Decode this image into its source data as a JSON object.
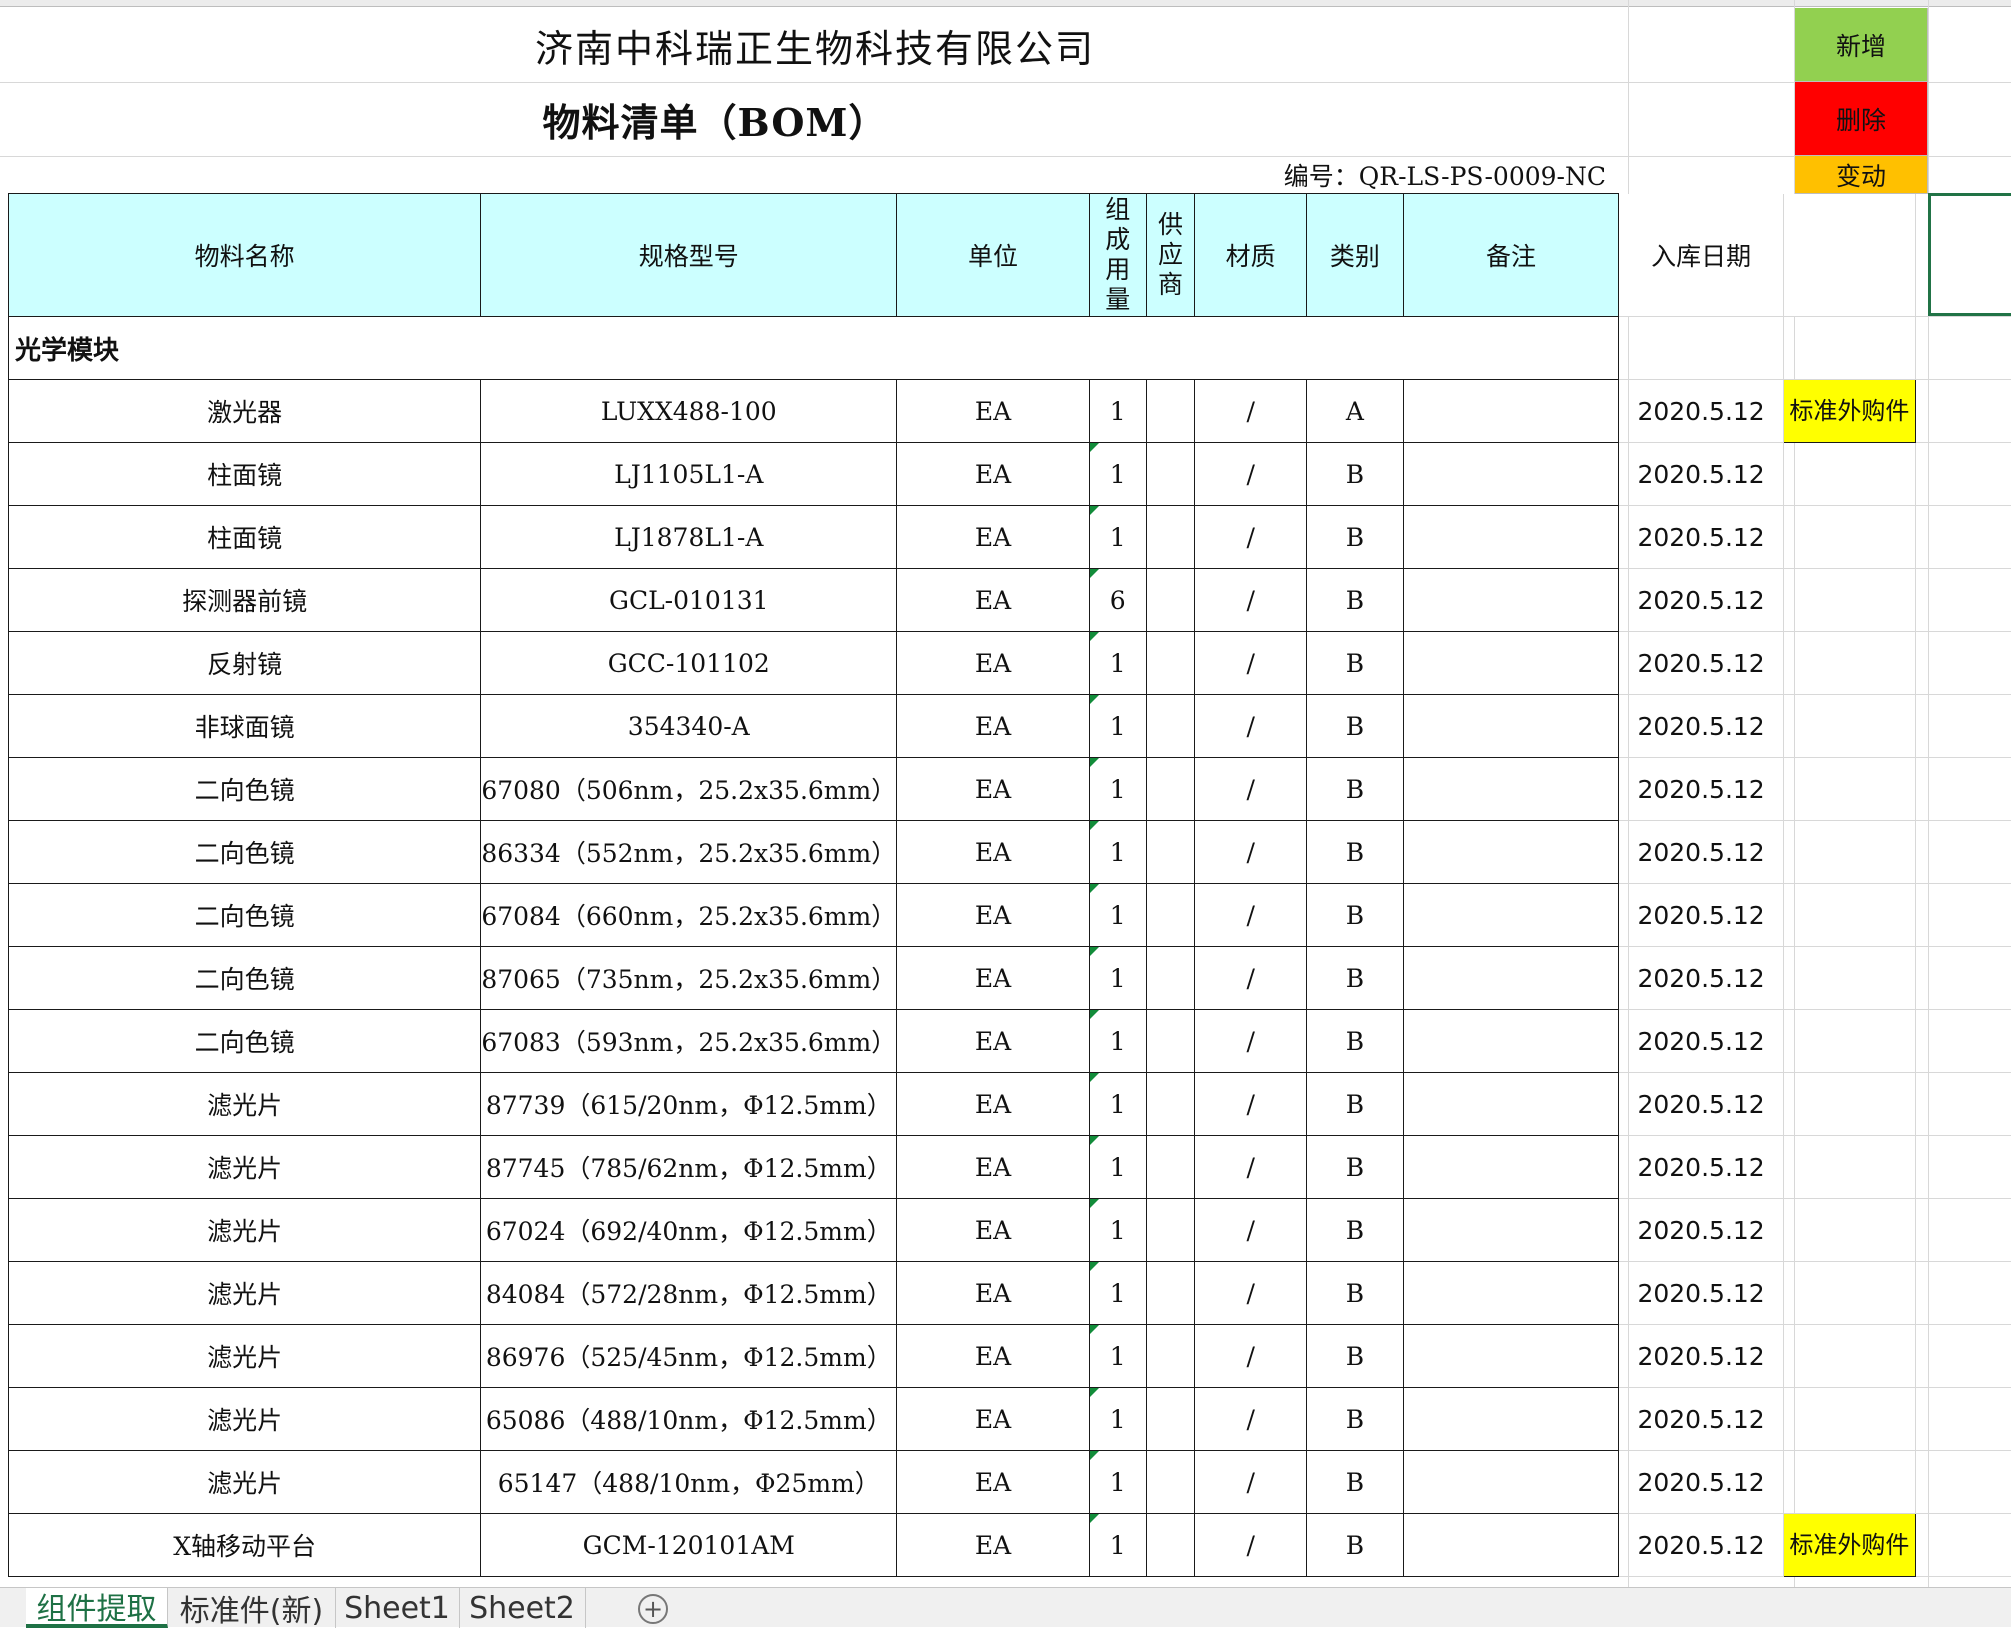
{
  "sheet": {
    "company": "济南中科瑞正生物科技有限公司",
    "doc_title": "物料清单（BOM）",
    "doc_no": "编号：QR-LS-PS-0009-NC"
  },
  "actions": {
    "add": "新增",
    "delete": "删除",
    "change": "变动"
  },
  "columns": {
    "name": "物料名称",
    "spec": "规格型号",
    "unit": "单位",
    "qty": "组成用量",
    "supplier": "供应商",
    "material": "材质",
    "category": "类别",
    "remark": "备注",
    "date": "入库日期"
  },
  "group_label": "光学模块",
  "rows": [
    {
      "name": "激光器",
      "spec": "LUXX488-100",
      "unit": "EA",
      "qty": "1",
      "material": "/",
      "category": "A",
      "date": "2020.5.12",
      "note": "标准外购件"
    },
    {
      "name": "柱面镜",
      "spec": "LJ1105L1-A",
      "unit": "EA",
      "qty": "1",
      "material": "/",
      "category": "B",
      "date": "2020.5.12",
      "note": ""
    },
    {
      "name": "柱面镜",
      "spec": "LJ1878L1-A",
      "unit": "EA",
      "qty": "1",
      "material": "/",
      "category": "B",
      "date": "2020.5.12",
      "note": ""
    },
    {
      "name": "探测器前镜",
      "spec": "GCL-010131",
      "unit": "EA",
      "qty": "6",
      "material": "/",
      "category": "B",
      "date": "2020.5.12",
      "note": ""
    },
    {
      "name": "反射镜",
      "spec": "GCC-101102",
      "unit": "EA",
      "qty": "1",
      "material": "/",
      "category": "B",
      "date": "2020.5.12",
      "note": ""
    },
    {
      "name": "非球面镜",
      "spec": "354340-A",
      "unit": "EA",
      "qty": "1",
      "material": "/",
      "category": "B",
      "date": "2020.5.12",
      "note": ""
    },
    {
      "name": "二向色镜",
      "spec": "67080（506nm，25.2x35.6mm）",
      "unit": "EA",
      "qty": "1",
      "material": "/",
      "category": "B",
      "date": "2020.5.12",
      "note": ""
    },
    {
      "name": "二向色镜",
      "spec": "86334（552nm，25.2x35.6mm）",
      "unit": "EA",
      "qty": "1",
      "material": "/",
      "category": "B",
      "date": "2020.5.12",
      "note": ""
    },
    {
      "name": "二向色镜",
      "spec": "67084（660nm，25.2x35.6mm）",
      "unit": "EA",
      "qty": "1",
      "material": "/",
      "category": "B",
      "date": "2020.5.12",
      "note": ""
    },
    {
      "name": "二向色镜",
      "spec": "87065（735nm，25.2x35.6mm）",
      "unit": "EA",
      "qty": "1",
      "material": "/",
      "category": "B",
      "date": "2020.5.12",
      "note": ""
    },
    {
      "name": "二向色镜",
      "spec": "67083（593nm，25.2x35.6mm）",
      "unit": "EA",
      "qty": "1",
      "material": "/",
      "category": "B",
      "date": "2020.5.12",
      "note": ""
    },
    {
      "name": "滤光片",
      "spec": "87739（615/20nm，Φ12.5mm）",
      "unit": "EA",
      "qty": "1",
      "material": "/",
      "category": "B",
      "date": "2020.5.12",
      "note": ""
    },
    {
      "name": "滤光片",
      "spec": "87745（785/62nm，Φ12.5mm）",
      "unit": "EA",
      "qty": "1",
      "material": "/",
      "category": "B",
      "date": "2020.5.12",
      "note": ""
    },
    {
      "name": "滤光片",
      "spec": "67024（692/40nm，Φ12.5mm）",
      "unit": "EA",
      "qty": "1",
      "material": "/",
      "category": "B",
      "date": "2020.5.12",
      "note": ""
    },
    {
      "name": "滤光片",
      "spec": "84084（572/28nm，Φ12.5mm）",
      "unit": "EA",
      "qty": "1",
      "material": "/",
      "category": "B",
      "date": "2020.5.12",
      "note": ""
    },
    {
      "name": "滤光片",
      "spec": "86976（525/45nm，Φ12.5mm）",
      "unit": "EA",
      "qty": "1",
      "material": "/",
      "category": "B",
      "date": "2020.5.12",
      "note": ""
    },
    {
      "name": "滤光片",
      "spec": "65086（488/10nm，Φ12.5mm）",
      "unit": "EA",
      "qty": "1",
      "material": "/",
      "category": "B",
      "date": "2020.5.12",
      "note": ""
    },
    {
      "name": "滤光片",
      "spec": "65147（488/10nm，Φ25mm）",
      "unit": "EA",
      "qty": "1",
      "material": "/",
      "category": "B",
      "date": "2020.5.12",
      "note": ""
    },
    {
      "name": "X轴移动平台",
      "spec": "GCM-120101AM",
      "unit": "EA",
      "qty": "1",
      "material": "/",
      "category": "B",
      "date": "2020.5.12",
      "note": "标准外购件"
    }
  ],
  "tabs": [
    "组件提取",
    "标准件(新)",
    "Sheet1",
    "Sheet2"
  ],
  "active_tab": 0,
  "colors": {
    "header_fill": "#ccffff",
    "add": "#92d050",
    "delete": "#ff0000",
    "change": "#ffc000",
    "note_fill": "#ffff00",
    "accent": "#1e7145"
  }
}
